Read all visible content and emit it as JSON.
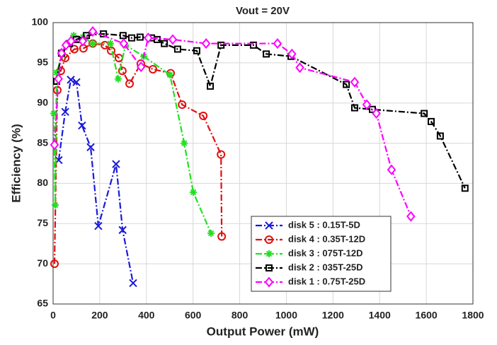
{
  "chart_data": {
    "type": "line",
    "title": "Vout = 20V",
    "xlabel": "Output Power (mW)",
    "ylabel": "Efficiency (%)",
    "xlim": [
      0,
      1800
    ],
    "xticks": [
      0,
      200,
      400,
      600,
      800,
      1000,
      1200,
      1400,
      1600,
      1800
    ],
    "ylim": [
      65,
      100
    ],
    "yticks": [
      65,
      70,
      75,
      80,
      85,
      90,
      95,
      100
    ],
    "grid": true,
    "legend": "lower center",
    "series": [
      {
        "name": "disk 5 : 0.15T-5D",
        "color": "#1a1adc",
        "marker": "x",
        "x": [
          24,
          52,
          76,
          100,
          124,
          161,
          194,
          270,
          298,
          343
        ],
        "values": [
          82.9,
          88.9,
          92.9,
          92.6,
          87.2,
          84.5,
          74.7,
          82.4,
          74.2,
          67.6
        ]
      },
      {
        "name": "disk 4 : 0.35T-12D",
        "color": "#e01010",
        "marker": "o",
        "x": [
          6,
          18,
          33,
          52,
          91,
          130,
          170,
          222,
          249,
          282,
          297,
          328,
          376,
          428,
          504,
          553,
          644,
          720,
          723
        ],
        "values": [
          70.0,
          91.6,
          94.0,
          95.6,
          96.7,
          96.8,
          97.4,
          97.2,
          96.5,
          95.6,
          94.0,
          92.4,
          94.9,
          94.2,
          93.7,
          89.8,
          88.4,
          83.6,
          73.4
        ]
      },
      {
        "name": "disk 3 : 075T-12D",
        "color": "#22e022",
        "marker": "*",
        "x": [
          3,
          9,
          15,
          40,
          64,
          88,
          128,
          170,
          246,
          279,
          310,
          389,
          501,
          562,
          601,
          677
        ],
        "values": [
          88.7,
          77.3,
          93.8,
          96.0,
          97.4,
          98.4,
          98.2,
          97.4,
          97.4,
          93.0,
          97.2,
          95.8,
          93.5,
          85.0,
          78.9,
          73.8
        ]
      },
      {
        "name": "disk 2 : 035T-25D",
        "color": "#000000",
        "marker": "s",
        "x": [
          15,
          36,
          70,
          100,
          143,
          216,
          300,
          337,
          373,
          422,
          446,
          477,
          534,
          616,
          674,
          720,
          859,
          914,
          1020,
          1257,
          1293,
          1369,
          1591,
          1621,
          1660,
          1766
        ],
        "values": [
          92.7,
          96.2,
          97.4,
          97.9,
          98.4,
          98.6,
          98.4,
          98.1,
          98.2,
          98.1,
          97.9,
          97.4,
          96.7,
          96.5,
          92.1,
          97.2,
          97.2,
          96.1,
          95.8,
          92.3,
          89.4,
          89.2,
          88.7,
          87.7,
          85.9,
          79.4
        ]
      },
      {
        "name": "disk 1 : 0.75T-25D",
        "color": "#ff00ff",
        "marker": "d",
        "x": [
          6,
          23,
          36,
          55,
          77,
          127,
          170,
          303,
          377,
          408,
          513,
          656,
          962,
          1024,
          1058,
          1293,
          1345,
          1386,
          1451,
          1534
        ],
        "values": [
          84.8,
          93.0,
          96.2,
          97.2,
          97.7,
          97.7,
          98.9,
          97.4,
          94.5,
          98.1,
          97.9,
          97.4,
          97.4,
          96.1,
          94.4,
          92.6,
          89.8,
          88.7,
          81.7,
          75.9
        ]
      }
    ]
  }
}
